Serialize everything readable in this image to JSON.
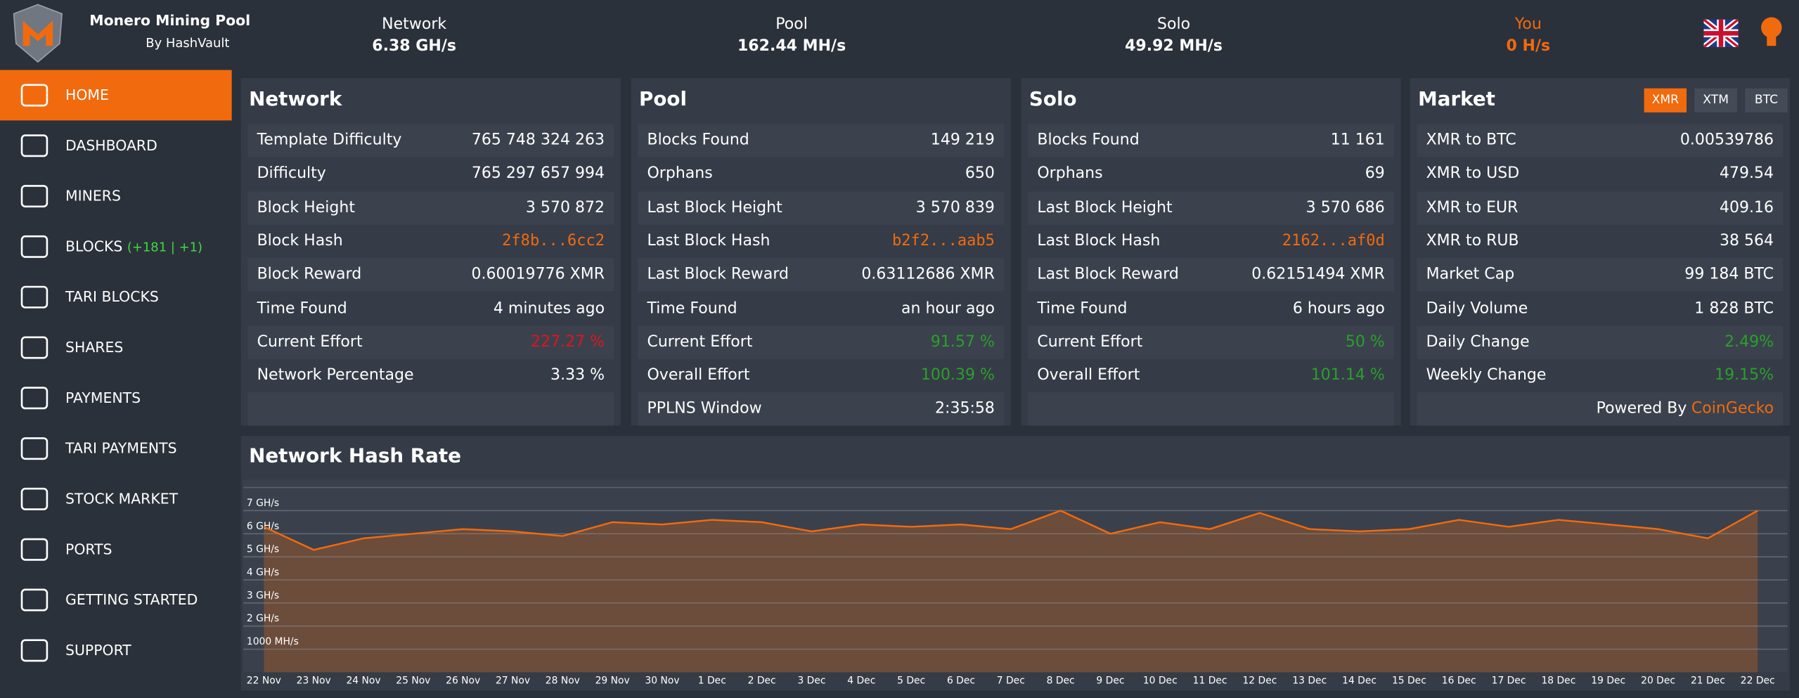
{
  "header": {
    "title": "Monero Mining Pool",
    "subtitle": "By HashVault",
    "stats": [
      {
        "label": "Network",
        "value": "6.38 GH/s"
      },
      {
        "label": "Pool",
        "value": "162.44 MH/s"
      },
      {
        "label": "Solo",
        "value": "49.92 MH/s"
      },
      {
        "label": "You",
        "value": "0 H/s"
      }
    ]
  },
  "nav": [
    {
      "label": "HOME"
    },
    {
      "label": "DASHBOARD"
    },
    {
      "label": "MINERS"
    },
    {
      "label": "BLOCKS",
      "extra": "(+181 | +1)"
    },
    {
      "label": "TARI BLOCKS"
    },
    {
      "label": "SHARES"
    },
    {
      "label": "PAYMENTS"
    },
    {
      "label": "TARI PAYMENTS"
    },
    {
      "label": "STOCK MARKET"
    },
    {
      "label": "PORTS"
    },
    {
      "label": "GETTING STARTED"
    },
    {
      "label": "SUPPORT"
    }
  ],
  "panels": [
    {
      "title": "Network",
      "rows": [
        {
          "label": "Template Difficulty",
          "value": "765 748 324 263"
        },
        {
          "label": "Difficulty",
          "value": "765 297 657 994"
        },
        {
          "label": "Block Height",
          "value": "3 570 872"
        },
        {
          "label": "Block Hash",
          "value": "2f8b...6cc2",
          "color": "orange"
        },
        {
          "label": "Block Reward",
          "value": "0.60019776 XMR"
        },
        {
          "label": "Time Found",
          "value": "4 minutes ago"
        },
        {
          "label": "Current Effort",
          "value": "227.27 %",
          "color": "red"
        },
        {
          "label": "Network Percentage",
          "value": "3.33 %"
        }
      ]
    },
    {
      "title": "Pool",
      "rows": [
        {
          "label": "Blocks Found",
          "value": "149 219"
        },
        {
          "label": "Orphans",
          "value": "650"
        },
        {
          "label": "Last Block Height",
          "value": "3 570 839"
        },
        {
          "label": "Last Block Hash",
          "value": "b2f2...aab5",
          "color": "orange"
        },
        {
          "label": "Last Block Reward",
          "value": "0.63112686 XMR"
        },
        {
          "label": "Time Found",
          "value": "an hour ago"
        },
        {
          "label": "Current Effort",
          "value": "91.57 %",
          "color": "green"
        },
        {
          "label": "Overall Effort",
          "value": "100.39 %",
          "color": "green"
        },
        {
          "label": "PPLNS Window",
          "value": "2:35:58"
        }
      ]
    },
    {
      "title": "Solo",
      "rows": [
        {
          "label": "Blocks Found",
          "value": "11 161"
        },
        {
          "label": "Orphans",
          "value": "69"
        },
        {
          "label": "Last Block Height",
          "value": "3 570 686"
        },
        {
          "label": "Last Block Hash",
          "value": "2162...af0d",
          "color": "orange"
        },
        {
          "label": "Last Block Reward",
          "value": "0.62151494 XMR"
        },
        {
          "label": "Time Found",
          "value": "6 hours ago"
        },
        {
          "label": "Current Effort",
          "value": "50 %",
          "color": "green"
        },
        {
          "label": "Overall Effort",
          "value": "101.14 %",
          "color": "green"
        }
      ]
    },
    {
      "title": "Market",
      "buttons": [
        "XMR",
        "XTM",
        "BTC"
      ],
      "rows": [
        {
          "label": "XMR to BTC",
          "value": "0.00539786"
        },
        {
          "label": "XMR to USD",
          "value": "479.54"
        },
        {
          "label": "XMR to EUR",
          "value": "409.16"
        },
        {
          "label": "XMR to RUB",
          "value": "38 564"
        },
        {
          "label": "Market Cap",
          "value": "99 184 BTC"
        },
        {
          "label": "Daily Volume",
          "value": "1 828 BTC"
        },
        {
          "label": "Daily Change",
          "value": "2.49%",
          "color": "green"
        },
        {
          "label": "Weekly Change",
          "value": "19.15%",
          "color": "green"
        }
      ],
      "footer": "Powered By",
      "link": "CoinGecko"
    }
  ],
  "chart_data": {
    "type": "area",
    "title": "Network Hash Rate",
    "color": "#f26a0e",
    "categories": [
      "22 Nov",
      "23 Nov",
      "24 Nov",
      "25 Nov",
      "26 Nov",
      "27 Nov",
      "28 Nov",
      "29 Nov",
      "30 Nov",
      "1 Dec",
      "2 Dec",
      "3 Dec",
      "4 Dec",
      "5 Dec",
      "6 Dec",
      "7 Dec",
      "8 Dec",
      "9 Dec",
      "10 Dec",
      "11 Dec",
      "12 Dec",
      "13 Dec",
      "14 Dec",
      "15 Dec",
      "16 Dec",
      "17 Dec",
      "18 Dec",
      "19 Dec",
      "20 Dec",
      "21 Dec",
      "22 Dec"
    ],
    "values": [
      6.3,
      5.3,
      5.8,
      6.0,
      6.2,
      6.1,
      5.9,
      6.5,
      6.4,
      6.6,
      6.5,
      6.1,
      6.4,
      6.3,
      6.4,
      6.2,
      7.0,
      6.0,
      6.5,
      6.2,
      6.9,
      6.2,
      6.1,
      6.2,
      6.6,
      6.3,
      6.6,
      6.4,
      6.2,
      5.8,
      7.0
    ],
    "ylim": [
      0,
      8
    ],
    "yticks": [
      {
        "value": 1,
        "label": "1000 MH/s"
      },
      {
        "value": 2,
        "label": "2 GH/s"
      },
      {
        "value": 3,
        "label": "3 GH/s"
      },
      {
        "value": 4,
        "label": "4 GH/s"
      },
      {
        "value": 5,
        "label": "5 GH/s"
      },
      {
        "value": 6,
        "label": "6 GH/s"
      },
      {
        "value": 7,
        "label": "7 GH/s"
      }
    ],
    "grid": true
  }
}
